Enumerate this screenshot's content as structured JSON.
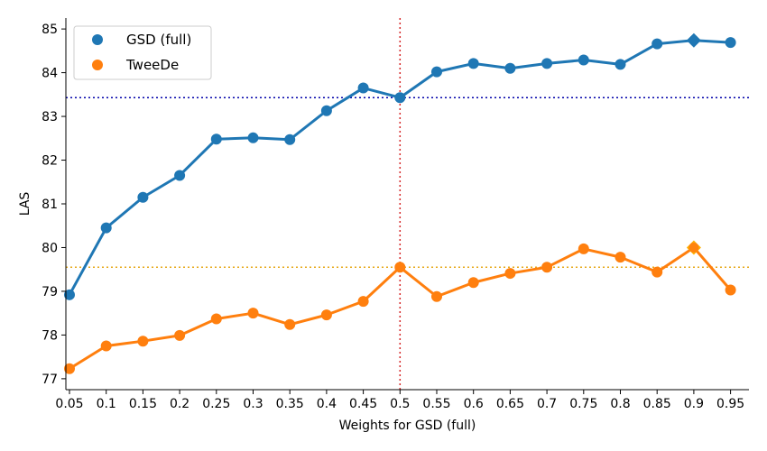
{
  "chart_data": {
    "type": "line",
    "title": "",
    "xlabel": "Weights for GSD (full)",
    "ylabel": "LAS",
    "categories": [
      "0.05",
      "0.1",
      "0.15",
      "0.2",
      "0.25",
      "0.3",
      "0.35",
      "0.4",
      "0.45",
      "0.5",
      "0.55",
      "0.6",
      "0.65",
      "0.7",
      "0.75",
      "0.8",
      "0.85",
      "0.9",
      "0.95"
    ],
    "ylim": [
      76.75,
      85.25
    ],
    "yticks": [
      77,
      78,
      79,
      80,
      81,
      82,
      83,
      84,
      85
    ],
    "grid": false,
    "legend_position": "top-left",
    "series": [
      {
        "name": "GSD (full)",
        "color": "#1f77b4",
        "values": [
          78.92,
          80.45,
          81.15,
          81.65,
          82.48,
          82.51,
          82.47,
          83.13,
          83.65,
          83.43,
          84.02,
          84.21,
          84.1,
          84.21,
          84.29,
          84.19,
          84.66,
          84.74,
          84.69
        ],
        "highlight_index": 17,
        "reference_line": {
          "y": 83.43,
          "color": "#0000aa",
          "style": "dotted"
        }
      },
      {
        "name": "TweeDe",
        "color": "#ff7f0e",
        "values": [
          77.23,
          77.75,
          77.86,
          77.99,
          78.37,
          78.5,
          78.24,
          78.46,
          78.77,
          79.55,
          78.88,
          79.2,
          79.41,
          79.55,
          79.97,
          79.78,
          79.44,
          80.0,
          79.03
        ],
        "highlight_index": 17,
        "highlight_color": "#ffb000",
        "reference_line": {
          "y": 79.55,
          "color": "#e6a817",
          "style": "dotted"
        }
      }
    ],
    "vertical_reference": {
      "x_category": "0.5",
      "color": "#d62728",
      "style": "dotted"
    }
  }
}
